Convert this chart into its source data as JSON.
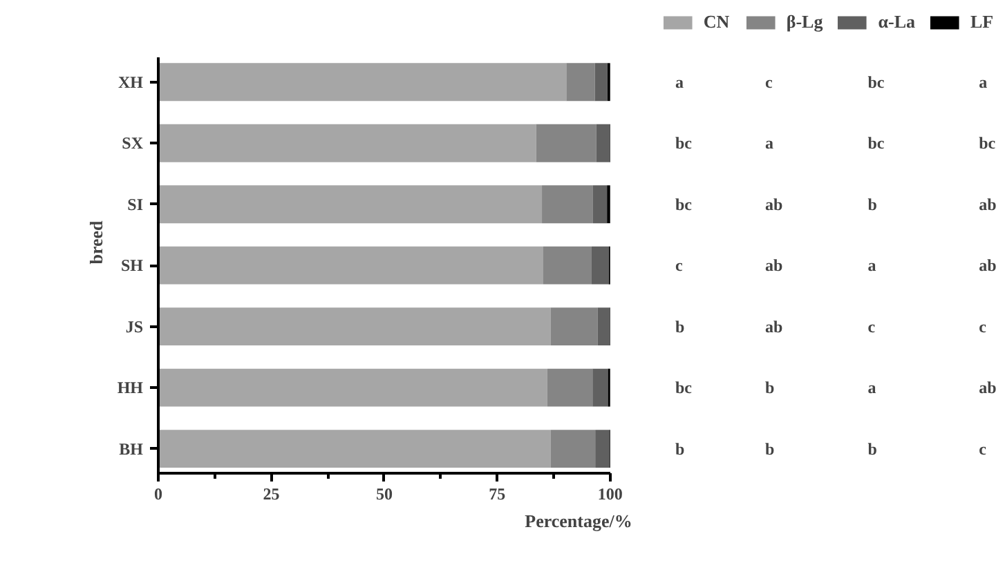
{
  "chart_data": {
    "type": "bar",
    "orientation": "horizontal",
    "stacked": true,
    "xlabel": "Percentage/%",
    "ylabel": "breed",
    "categories": [
      "XH",
      "SX",
      "SI",
      "SH",
      "JS",
      "HH",
      "BH"
    ],
    "series": [
      {
        "name": "CN",
        "color": "#a6a6a6",
        "values": [
          90.3,
          83.6,
          84.9,
          85.2,
          86.8,
          86.1,
          86.8
        ]
      },
      {
        "name": "β-Lg",
        "color": "#858585",
        "values": [
          6.3,
          13.3,
          11.3,
          10.7,
          10.4,
          10.0,
          9.9
        ]
      },
      {
        "name": "α-La",
        "color": "#606060",
        "values": [
          2.8,
          3.0,
          3.1,
          3.8,
          2.7,
          3.4,
          3.1
        ]
      },
      {
        "name": "LF",
        "color": "#000000",
        "values": [
          0.6,
          0.1,
          0.7,
          0.3,
          0.1,
          0.5,
          0.2
        ]
      }
    ],
    "xlim": [
      0,
      100
    ],
    "xticks": [
      0,
      25,
      50,
      75,
      100
    ],
    "grid": false,
    "legend": "top right",
    "annotations": [
      "a",
      "c",
      "bc",
      "a",
      "bc",
      "a",
      "bc",
      "bc",
      "bc",
      "ab",
      "b",
      "ab",
      "c",
      "ab",
      "a",
      "ab",
      "b",
      "ab",
      "c",
      "c",
      "bc",
      "b",
      "a",
      "ab",
      "b",
      "b",
      "b",
      "c"
    ]
  }
}
